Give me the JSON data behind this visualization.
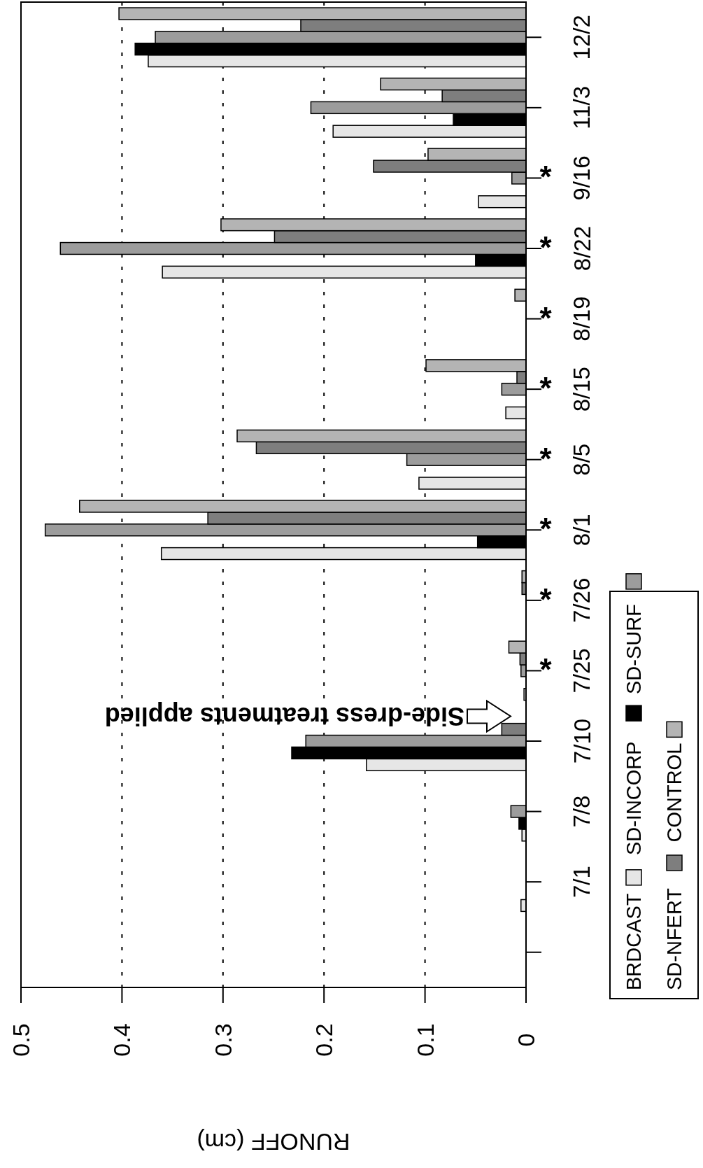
{
  "chart_data": {
    "type": "bar",
    "orientation": "horizontal",
    "xlabel": "RUNOFF (cm)",
    "categories": [
      "12/2",
      "11/3",
      "9/16",
      "8/22",
      "8/19",
      "8/15",
      "8/5",
      "8/1",
      "7/26",
      "7/25",
      "7/10",
      "7/8",
      "7/1",
      null
    ],
    "series": [
      {
        "name": "BRDCAST",
        "color": "#e6e6e6",
        "values": [
          0.374,
          0.191,
          0.047,
          0.36,
          0,
          0.02,
          0.106,
          0.361,
          0,
          0.002,
          0.158,
          0.004,
          0.005,
          null
        ]
      },
      {
        "name": "SD-INCORP",
        "color": "#000000",
        "values": [
          0.387,
          0.072,
          0,
          0.05,
          0,
          0,
          0,
          0.048,
          0,
          0,
          0.232,
          0.007,
          0,
          null
        ]
      },
      {
        "name": "SD-SURF",
        "color": "#9c9c9c",
        "values": [
          0.367,
          0.213,
          0.014,
          0.461,
          0,
          0.024,
          0.118,
          0.476,
          0,
          0.005,
          0.218,
          0.015,
          0,
          null
        ]
      },
      {
        "name": "SD-NFERT",
        "color": "#7e7e7e",
        "values": [
          0.223,
          0.083,
          0.151,
          0.249,
          0,
          0.009,
          0.267,
          0.315,
          0.004,
          0.006,
          0.024,
          0,
          0,
          null
        ]
      },
      {
        "name": "CONTROL",
        "color": "#b4b4b4",
        "values": [
          0.403,
          0.144,
          0.097,
          0.302,
          0.011,
          0.099,
          0.286,
          0.442,
          0.004,
          0.017,
          0,
          0,
          0,
          null
        ]
      }
    ],
    "xlim": [
      0.5,
      0
    ],
    "xticks": [
      0.5,
      0.4,
      0.3,
      0.2,
      0.1,
      0
    ],
    "grid": "x",
    "legend": "bottom",
    "annotations": [
      "Side-dress treatments applied",
      "*",
      "*",
      "*",
      "*",
      "*",
      "*",
      "*",
      "*"
    ]
  }
}
